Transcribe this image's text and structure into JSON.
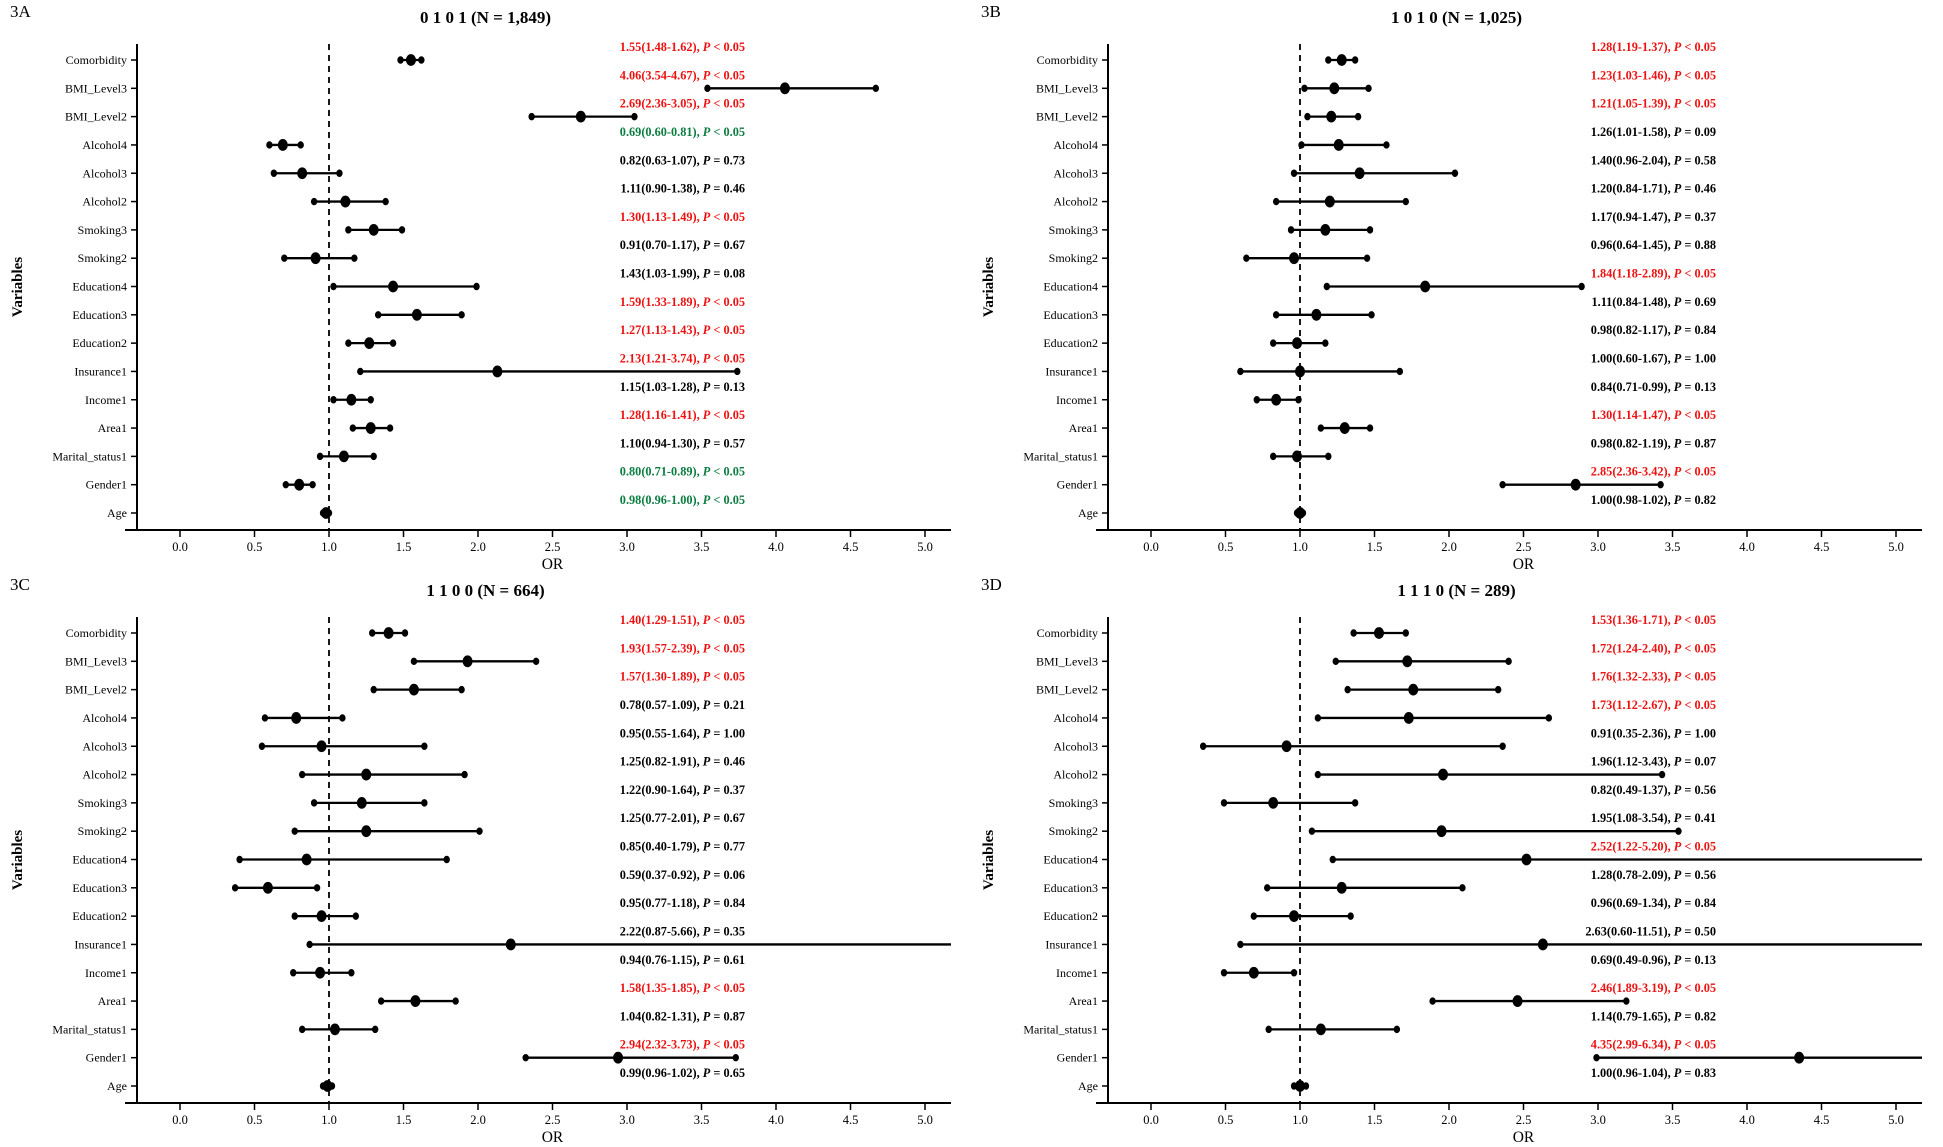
{
  "figure_meta": {
    "background": "#ffffff",
    "axis_color": "#000000",
    "significance_colors": {
      "red": "#ee1111",
      "green": "#0b7d40",
      "black": "#000000"
    },
    "annotation_format": "OR(CI_low-CI_high), P value"
  },
  "chart_data": [
    {
      "type": "scatter",
      "subtype": "forest-plot",
      "panel_label": "3A",
      "title": "0 1 0 1 (N = 1,849)",
      "xlabel": "OR",
      "ylabel": "Variables",
      "xlim": [
        -0.3,
        5.3
      ],
      "reference_line_x": 1.0,
      "xticks": [
        "0.0",
        "0.5",
        "1.0",
        "1.5",
        "2.0",
        "2.5",
        "3.0",
        "3.5",
        "4.0",
        "4.5",
        "5.0"
      ],
      "rows": [
        {
          "variable": "Comorbidity",
          "or": "1.55",
          "lo": "1.48",
          "hi": "1.62",
          "p": "< 0.05",
          "color": "red"
        },
        {
          "variable": "BMI_Level3",
          "or": "4.06",
          "lo": "3.54",
          "hi": "4.67",
          "p": "< 0.05",
          "color": "red"
        },
        {
          "variable": "BMI_Level2",
          "or": "2.69",
          "lo": "2.36",
          "hi": "3.05",
          "p": "< 0.05",
          "color": "red"
        },
        {
          "variable": "Alcohol4",
          "or": "0.69",
          "lo": "0.60",
          "hi": "0.81",
          "p": "< 0.05",
          "color": "green"
        },
        {
          "variable": "Alcohol3",
          "or": "0.82",
          "lo": "0.63",
          "hi": "1.07",
          "p": "= 0.73",
          "color": "black"
        },
        {
          "variable": "Alcohol2",
          "or": "1.11",
          "lo": "0.90",
          "hi": "1.38",
          "p": "= 0.46",
          "color": "black"
        },
        {
          "variable": "Smoking3",
          "or": "1.30",
          "lo": "1.13",
          "hi": "1.49",
          "p": "< 0.05",
          "color": "red"
        },
        {
          "variable": "Smoking2",
          "or": "0.91",
          "lo": "0.70",
          "hi": "1.17",
          "p": "= 0.67",
          "color": "black"
        },
        {
          "variable": "Education4",
          "or": "1.43",
          "lo": "1.03",
          "hi": "1.99",
          "p": "= 0.08",
          "color": "black"
        },
        {
          "variable": "Education3",
          "or": "1.59",
          "lo": "1.33",
          "hi": "1.89",
          "p": "< 0.05",
          "color": "red"
        },
        {
          "variable": "Education2",
          "or": "1.27",
          "lo": "1.13",
          "hi": "1.43",
          "p": "< 0.05",
          "color": "red"
        },
        {
          "variable": "Insurance1",
          "or": "2.13",
          "lo": "1.21",
          "hi": "3.74",
          "p": "< 0.05",
          "color": "red"
        },
        {
          "variable": "Income1",
          "or": "1.15",
          "lo": "1.03",
          "hi": "1.28",
          "p": "= 0.13",
          "color": "black"
        },
        {
          "variable": "Area1",
          "or": "1.28",
          "lo": "1.16",
          "hi": "1.41",
          "p": "< 0.05",
          "color": "red"
        },
        {
          "variable": "Marital_status1",
          "or": "1.10",
          "lo": "0.94",
          "hi": "1.30",
          "p": "= 0.57",
          "color": "black"
        },
        {
          "variable": "Gender1",
          "or": "0.80",
          "lo": "0.71",
          "hi": "0.89",
          "p": "< 0.05",
          "color": "green"
        },
        {
          "variable": "Age",
          "or": "0.98",
          "lo": "0.96",
          "hi": "1.00",
          "p": "< 0.05",
          "color": "green"
        }
      ]
    },
    {
      "type": "scatter",
      "subtype": "forest-plot",
      "panel_label": "3B",
      "title": "1 0 1 0 (N = 1,025)",
      "xlabel": "OR",
      "ylabel": "Variables",
      "xlim": [
        -0.3,
        5.3
      ],
      "reference_line_x": 1.0,
      "xticks": [
        "0.0",
        "0.5",
        "1.0",
        "1.5",
        "2.0",
        "2.5",
        "3.0",
        "3.5",
        "4.0",
        "4.5",
        "5.0"
      ],
      "rows": [
        {
          "variable": "Comorbidity",
          "or": "1.28",
          "lo": "1.19",
          "hi": "1.37",
          "p": "< 0.05",
          "color": "red"
        },
        {
          "variable": "BMI_Level3",
          "or": "1.23",
          "lo": "1.03",
          "hi": "1.46",
          "p": "< 0.05",
          "color": "red"
        },
        {
          "variable": "BMI_Level2",
          "or": "1.21",
          "lo": "1.05",
          "hi": "1.39",
          "p": "< 0.05",
          "color": "red"
        },
        {
          "variable": "Alcohol4",
          "or": "1.26",
          "lo": "1.01",
          "hi": "1.58",
          "p": "= 0.09",
          "color": "black"
        },
        {
          "variable": "Alcohol3",
          "or": "1.40",
          "lo": "0.96",
          "hi": "2.04",
          "p": "= 0.58",
          "color": "black"
        },
        {
          "variable": "Alcohol2",
          "or": "1.20",
          "lo": "0.84",
          "hi": "1.71",
          "p": "= 0.46",
          "color": "black"
        },
        {
          "variable": "Smoking3",
          "or": "1.17",
          "lo": "0.94",
          "hi": "1.47",
          "p": "= 0.37",
          "color": "black"
        },
        {
          "variable": "Smoking2",
          "or": "0.96",
          "lo": "0.64",
          "hi": "1.45",
          "p": "= 0.88",
          "color": "black"
        },
        {
          "variable": "Education4",
          "or": "1.84",
          "lo": "1.18",
          "hi": "2.89",
          "p": "< 0.05",
          "color": "red"
        },
        {
          "variable": "Education3",
          "or": "1.11",
          "lo": "0.84",
          "hi": "1.48",
          "p": "= 0.69",
          "color": "black"
        },
        {
          "variable": "Education2",
          "or": "0.98",
          "lo": "0.82",
          "hi": "1.17",
          "p": "= 0.84",
          "color": "black"
        },
        {
          "variable": "Insurance1",
          "or": "1.00",
          "lo": "0.60",
          "hi": "1.67",
          "p": "= 1.00",
          "color": "black"
        },
        {
          "variable": "Income1",
          "or": "0.84",
          "lo": "0.71",
          "hi": "0.99",
          "p": "= 0.13",
          "color": "black"
        },
        {
          "variable": "Area1",
          "or": "1.30",
          "lo": "1.14",
          "hi": "1.47",
          "p": "< 0.05",
          "color": "red"
        },
        {
          "variable": "Marital_status1",
          "or": "0.98",
          "lo": "0.82",
          "hi": "1.19",
          "p": "= 0.87",
          "color": "black"
        },
        {
          "variable": "Gender1",
          "or": "2.85",
          "lo": "2.36",
          "hi": "3.42",
          "p": "< 0.05",
          "color": "red"
        },
        {
          "variable": "Age",
          "or": "1.00",
          "lo": "0.98",
          "hi": "1.02",
          "p": "= 0.82",
          "color": "black"
        }
      ]
    },
    {
      "type": "scatter",
      "subtype": "forest-plot",
      "panel_label": "3C",
      "title": "1 1 0 0 (N = 664)",
      "xlabel": "OR",
      "ylabel": "Variables",
      "xlim": [
        -0.3,
        5.3
      ],
      "reference_line_x": 1.0,
      "xticks": [
        "0.0",
        "0.5",
        "1.0",
        "1.5",
        "2.0",
        "2.5",
        "3.0",
        "3.5",
        "4.0",
        "4.5",
        "5.0"
      ],
      "rows": [
        {
          "variable": "Comorbidity",
          "or": "1.40",
          "lo": "1.29",
          "hi": "1.51",
          "p": "< 0.05",
          "color": "red"
        },
        {
          "variable": "BMI_Level3",
          "or": "1.93",
          "lo": "1.57",
          "hi": "2.39",
          "p": "< 0.05",
          "color": "red"
        },
        {
          "variable": "BMI_Level2",
          "or": "1.57",
          "lo": "1.30",
          "hi": "1.89",
          "p": "< 0.05",
          "color": "red"
        },
        {
          "variable": "Alcohol4",
          "or": "0.78",
          "lo": "0.57",
          "hi": "1.09",
          "p": "= 0.21",
          "color": "black"
        },
        {
          "variable": "Alcohol3",
          "or": "0.95",
          "lo": "0.55",
          "hi": "1.64",
          "p": "= 1.00",
          "color": "black"
        },
        {
          "variable": "Alcohol2",
          "or": "1.25",
          "lo": "0.82",
          "hi": "1.91",
          "p": "= 0.46",
          "color": "black"
        },
        {
          "variable": "Smoking3",
          "or": "1.22",
          "lo": "0.90",
          "hi": "1.64",
          "p": "= 0.37",
          "color": "black"
        },
        {
          "variable": "Smoking2",
          "or": "1.25",
          "lo": "0.77",
          "hi": "2.01",
          "p": "= 0.67",
          "color": "black"
        },
        {
          "variable": "Education4",
          "or": "0.85",
          "lo": "0.40",
          "hi": "1.79",
          "p": "= 0.77",
          "color": "black"
        },
        {
          "variable": "Education3",
          "or": "0.59",
          "lo": "0.37",
          "hi": "0.92",
          "p": "= 0.06",
          "color": "black"
        },
        {
          "variable": "Education2",
          "or": "0.95",
          "lo": "0.77",
          "hi": "1.18",
          "p": "= 0.84",
          "color": "black"
        },
        {
          "variable": "Insurance1",
          "or": "2.22",
          "lo": "0.87",
          "hi": "5.66",
          "p": "= 0.35",
          "color": "black"
        },
        {
          "variable": "Income1",
          "or": "0.94",
          "lo": "0.76",
          "hi": "1.15",
          "p": "= 0.61",
          "color": "black"
        },
        {
          "variable": "Area1",
          "or": "1.58",
          "lo": "1.35",
          "hi": "1.85",
          "p": "< 0.05",
          "color": "red"
        },
        {
          "variable": "Marital_status1",
          "or": "1.04",
          "lo": "0.82",
          "hi": "1.31",
          "p": "= 0.87",
          "color": "black"
        },
        {
          "variable": "Gender1",
          "or": "2.94",
          "lo": "2.32",
          "hi": "3.73",
          "p": "< 0.05",
          "color": "red"
        },
        {
          "variable": "Age",
          "or": "0.99",
          "lo": "0.96",
          "hi": "1.02",
          "p": "= 0.65",
          "color": "black"
        }
      ]
    },
    {
      "type": "scatter",
      "subtype": "forest-plot",
      "panel_label": "3D",
      "title": "1 1 1 0 (N = 289)",
      "xlabel": "OR",
      "ylabel": "Variables",
      "xlim": [
        -0.3,
        5.3
      ],
      "reference_line_x": 1.0,
      "xticks": [
        "0.0",
        "0.5",
        "1.0",
        "1.5",
        "2.0",
        "2.5",
        "3.0",
        "3.5",
        "4.0",
        "4.5",
        "5.0"
      ],
      "rows": [
        {
          "variable": "Comorbidity",
          "or": "1.53",
          "lo": "1.36",
          "hi": "1.71",
          "p": "< 0.05",
          "color": "red"
        },
        {
          "variable": "BMI_Level3",
          "or": "1.72",
          "lo": "1.24",
          "hi": "2.40",
          "p": "< 0.05",
          "color": "red"
        },
        {
          "variable": "BMI_Level2",
          "or": "1.76",
          "lo": "1.32",
          "hi": "2.33",
          "p": "< 0.05",
          "color": "red"
        },
        {
          "variable": "Alcohol4",
          "or": "1.73",
          "lo": "1.12",
          "hi": "2.67",
          "p": "< 0.05",
          "color": "red"
        },
        {
          "variable": "Alcohol3",
          "or": "0.91",
          "lo": "0.35",
          "hi": "2.36",
          "p": "= 1.00",
          "color": "black"
        },
        {
          "variable": "Alcohol2",
          "or": "1.96",
          "lo": "1.12",
          "hi": "3.43",
          "p": "= 0.07",
          "color": "black"
        },
        {
          "variable": "Smoking3",
          "or": "0.82",
          "lo": "0.49",
          "hi": "1.37",
          "p": "= 0.56",
          "color": "black"
        },
        {
          "variable": "Smoking2",
          "or": "1.95",
          "lo": "1.08",
          "hi": "3.54",
          "p": "= 0.41",
          "color": "black"
        },
        {
          "variable": "Education4",
          "or": "2.52",
          "lo": "1.22",
          "hi": "5.20",
          "p": "< 0.05",
          "color": "red"
        },
        {
          "variable": "Education3",
          "or": "1.28",
          "lo": "0.78",
          "hi": "2.09",
          "p": "= 0.56",
          "color": "black"
        },
        {
          "variable": "Education2",
          "or": "0.96",
          "lo": "0.69",
          "hi": "1.34",
          "p": "= 0.84",
          "color": "black"
        },
        {
          "variable": "Insurance1",
          "or": "2.63",
          "lo": "0.60",
          "hi": "11.51",
          "p": "= 0.50",
          "color": "black"
        },
        {
          "variable": "Income1",
          "or": "0.69",
          "lo": "0.49",
          "hi": "0.96",
          "p": "= 0.13",
          "color": "black"
        },
        {
          "variable": "Area1",
          "or": "2.46",
          "lo": "1.89",
          "hi": "3.19",
          "p": "< 0.05",
          "color": "red"
        },
        {
          "variable": "Marital_status1",
          "or": "1.14",
          "lo": "0.79",
          "hi": "1.65",
          "p": "= 0.82",
          "color": "black"
        },
        {
          "variable": "Gender1",
          "or": "4.35",
          "lo": "2.99",
          "hi": "6.34",
          "p": "< 0.05",
          "color": "red"
        },
        {
          "variable": "Age",
          "or": "1.00",
          "lo": "0.96",
          "hi": "1.04",
          "p": "= 0.83",
          "color": "black"
        }
      ]
    }
  ]
}
